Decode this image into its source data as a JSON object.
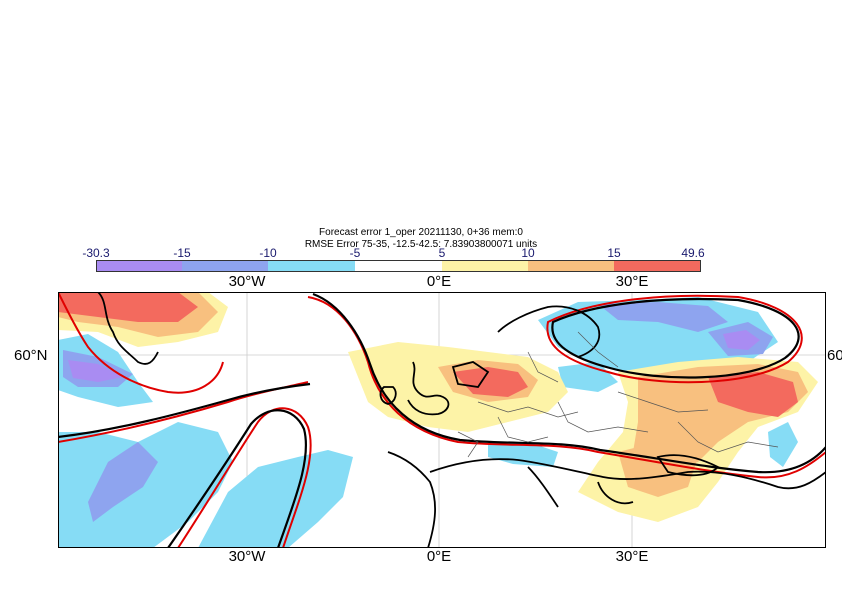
{
  "title": {
    "line1": "Forecast error  1_oper 20211130, 0+36 mem:0",
    "line2": "RMSE Error 75-35, -12.5-42.5: 7.83903800071 units"
  },
  "colorbar": {
    "ticks": [
      "-30.3",
      "-15",
      "-10",
      "-5",
      "5",
      "10",
      "15",
      "49.6"
    ],
    "colors": [
      "#a98cf2",
      "#8ea4ef",
      "#86dcf5",
      "#ffffff",
      "#fdf3a7",
      "#f8c07f",
      "#f36a5e"
    ]
  },
  "axes": {
    "top_lon_labels": [
      "30°W",
      "0°E",
      "30°E"
    ],
    "bottom_lon_labels": [
      "30°W",
      "0°E",
      "30°E"
    ],
    "lat_label_left": "60°N",
    "lat_label_right": "60"
  },
  "colors": {
    "contour_red": "#e00000",
    "coast_black": "#000000",
    "border_gray": "#555555"
  }
}
